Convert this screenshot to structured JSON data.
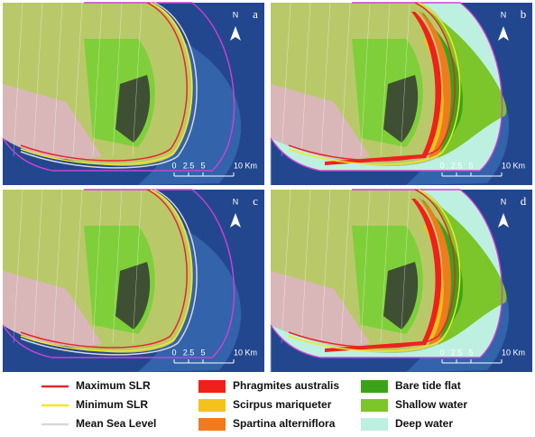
{
  "panels": [
    {
      "label": "a",
      "north": "N",
      "scale": [
        "0",
        "2.5",
        "5",
        "10 Km"
      ]
    },
    {
      "label": "b",
      "north": "N",
      "scale": [
        "0",
        "2.5",
        "5",
        "10 Km"
      ]
    },
    {
      "label": "c",
      "north": "N",
      "scale": [
        "0",
        "2.5",
        "5",
        "10 Km"
      ]
    },
    {
      "label": "d",
      "north": "N",
      "scale": [
        "0",
        "2.5",
        "5",
        "10 Km"
      ]
    }
  ],
  "legend": [
    {
      "label": "Maximum SLR",
      "color": "#e8262a",
      "kind": "line"
    },
    {
      "label": "Minimum SLR",
      "color": "#f4e626",
      "kind": "line"
    },
    {
      "label": "Mean Sea Level",
      "color": "#d8d8d8",
      "kind": "line"
    },
    {
      "label": "Phragmites australis",
      "color": "#f0201a",
      "kind": "patch"
    },
    {
      "label": "Scirpus mariqueter",
      "color": "#f5c21c",
      "kind": "patch"
    },
    {
      "label": "Spartina alterniflora",
      "color": "#f07a1e",
      "kind": "patch"
    },
    {
      "label": "Bare tide flat",
      "color": "#3aa31a",
      "kind": "patch"
    },
    {
      "label": "Shallow water",
      "color": "#7cc52a",
      "kind": "patch"
    },
    {
      "label": "Deep water",
      "color": "#bdf0e0",
      "kind": "patch"
    }
  ]
}
